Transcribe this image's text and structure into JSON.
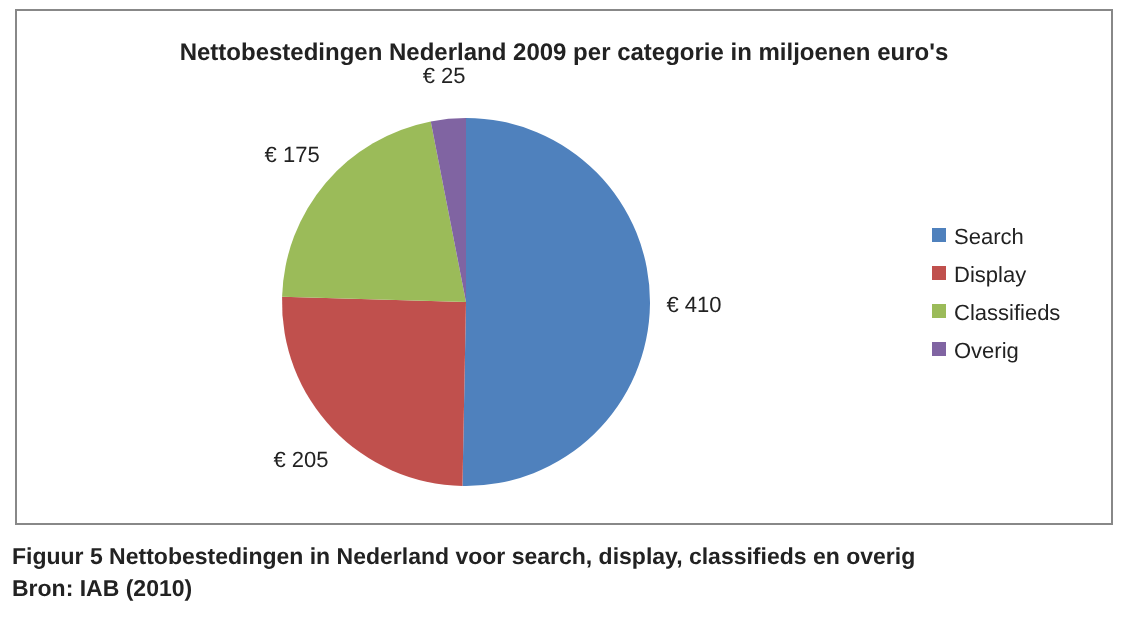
{
  "chart_data": {
    "type": "pie",
    "title": "Nettobestedingen Nederland 2009 per categorie in miljoenen euro's",
    "categories": [
      "Search",
      "Display",
      "Classifieds",
      "Overig"
    ],
    "values": [
      410,
      205,
      175,
      25
    ],
    "value_labels": [
      "€ 410",
      "€ 205",
      "€ 175",
      "€ 25"
    ],
    "colors": [
      "#4f81bd",
      "#c0504d",
      "#9bbb59",
      "#8064a2"
    ],
    "legend": "right",
    "annotations": [
      "Figuur 5 Nettobestedingen in Nederland voor search, display, classifieds en overig",
      "Bron: IAB (2010)"
    ]
  }
}
